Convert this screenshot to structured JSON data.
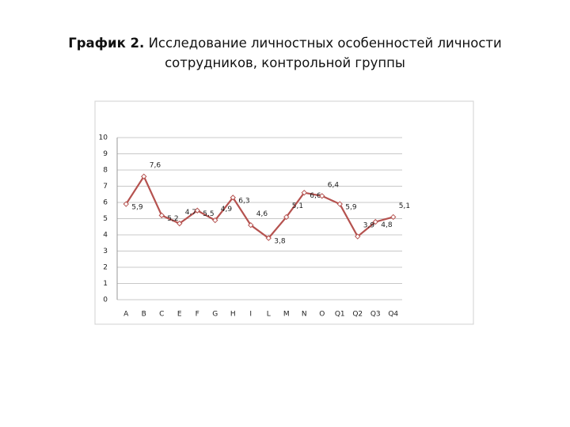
{
  "chart_data": {
    "type": "line",
    "figure_label": "График 2.",
    "title": "Исследование личностных особенностей личности сотрудников, контрольной группы",
    "categories": [
      "A",
      "B",
      "C",
      "E",
      "F",
      "G",
      "H",
      "I",
      "L",
      "M",
      "N",
      "O",
      "Q1",
      "Q2",
      "Q3",
      "Q4"
    ],
    "values": [
      5.9,
      7.6,
      5.2,
      4.7,
      5.5,
      4.9,
      6.3,
      4.6,
      3.8,
      5.1,
      6.6,
      6.4,
      5.9,
      3.9,
      4.8,
      5.1
    ],
    "value_labels": [
      "5,9",
      "7,6",
      "5,2",
      "4,7",
      "5,5",
      "4,9",
      "6,3",
      "4,6",
      "3,8",
      "5,1",
      "6,6",
      "6,4",
      "5,9",
      "3,9",
      "4,8",
      "5,1"
    ],
    "color": "#b5524f",
    "ylim": [
      0,
      10
    ],
    "yticks": [
      0,
      1,
      2,
      3,
      4,
      5,
      6,
      7,
      8,
      9,
      10
    ],
    "grid": true
  }
}
